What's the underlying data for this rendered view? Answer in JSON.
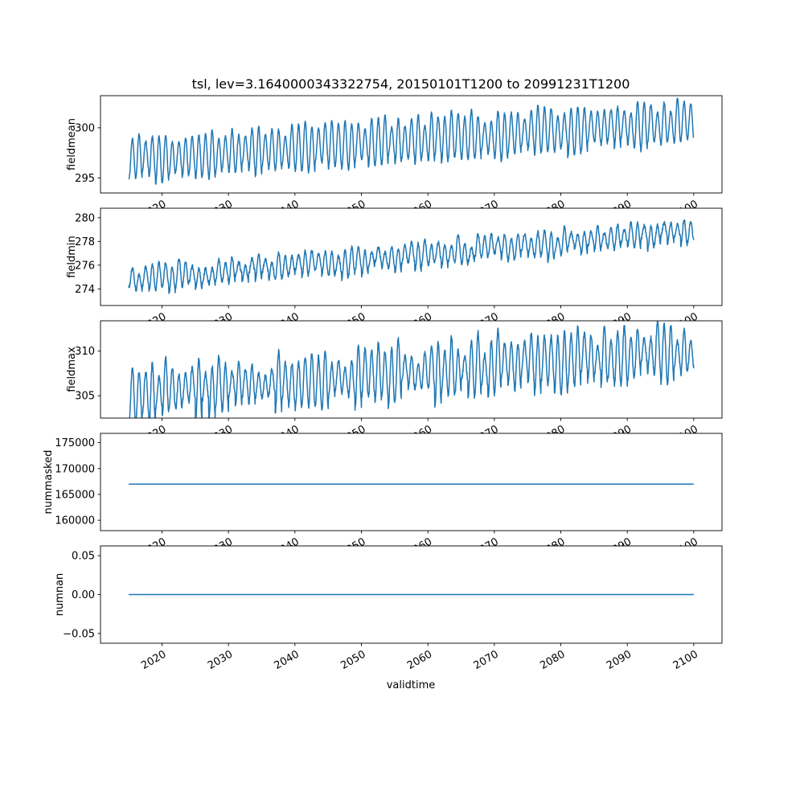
{
  "figure": {
    "line_color": "#1f77b4",
    "axis_color": "#000000",
    "background": "#ffffff"
  },
  "chart_data": {
    "type": "line",
    "title": "tsl, lev=3.1640000343322754, 20150101T1200 to 20991231T1200",
    "xlabel": "validtime",
    "x_range": [
      2015,
      2100
    ],
    "x_ticks": [
      2020,
      2030,
      2040,
      2050,
      2060,
      2070,
      2080,
      2090,
      2100
    ],
    "x_tick_labels": [
      "2020",
      "2030",
      "2040",
      "2050",
      "2060",
      "2070",
      "2080",
      "2090",
      "2100"
    ],
    "legend": "none",
    "grid": false,
    "charts": [
      {
        "name": "fieldmean",
        "ylabel": "fieldmean",
        "ylim": [
          293.5,
          303.2
        ],
        "yticks": [
          295,
          300
        ],
        "ytick_labels": [
          "295",
          "300"
        ],
        "series": {
          "kind": "seasonal",
          "start_mean": 296.9,
          "end_mean": 300.6,
          "amplitude": 1.9,
          "amp_jitter": 0.3,
          "noise": 0.3,
          "seed": 1,
          "description": "annual oscillation rising from ~297 K in 2015 to ~300.6 K in 2100, seasonal amplitude ~2 K"
        }
      },
      {
        "name": "fieldmin",
        "ylabel": "fieldmin",
        "ylim": [
          272.6,
          280.8
        ],
        "yticks": [
          274,
          276,
          278,
          280
        ],
        "ytick_labels": [
          "274",
          "276",
          "278",
          "280"
        ],
        "series": {
          "kind": "seasonal",
          "start_mean": 274.7,
          "end_mean": 278.9,
          "amplitude": 0.85,
          "amp_jitter": 0.4,
          "noise": 0.35,
          "seed": 2,
          "description": "annual oscillation rising from ~274.7 in 2015 to ~278.9 in 2100, amplitude ~0.9"
        }
      },
      {
        "name": "fieldmax",
        "ylabel": "fieldmax",
        "ylim": [
          302.5,
          313.4
        ],
        "yticks": [
          305,
          310
        ],
        "ytick_labels": [
          "305",
          "310"
        ],
        "series": {
          "kind": "seasonal",
          "start_mean": 305.2,
          "end_mean": 310.2,
          "amplitude": 2.4,
          "amp_jitter": 0.5,
          "noise": 0.6,
          "seed": 3,
          "description": "noisy annual oscillation rising from ~305 in 2015 to ~310 in 2100, amplitude ~2.5"
        }
      },
      {
        "name": "nummasked",
        "ylabel": "nummasked",
        "ylim": [
          158000,
          176800
        ],
        "yticks": [
          160000,
          165000,
          170000,
          175000
        ],
        "ytick_labels": [
          "160000",
          "165000",
          "170000",
          "175000"
        ],
        "series": {
          "kind": "constant",
          "value": 167000,
          "description": "constant at 167000 from 2015 to 2100"
        }
      },
      {
        "name": "numnan",
        "ylabel": "numnan",
        "ylim": [
          -0.0625,
          0.0625
        ],
        "yticks": [
          -0.05,
          0.0,
          0.05
        ],
        "ytick_labels": [
          "−0.05",
          "0.00",
          "0.05"
        ],
        "series": {
          "kind": "constant",
          "value": 0.0,
          "description": "constant at 0.00 from 2015 to 2100"
        }
      }
    ]
  }
}
